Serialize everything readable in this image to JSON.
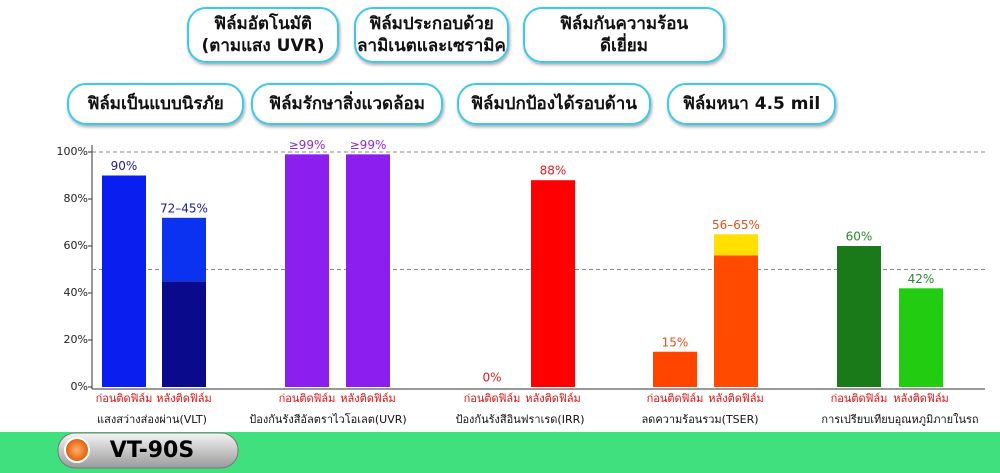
{
  "badges": [
    {
      "lines": [
        "ฟิล์มอัตโนมัติ",
        "(ตามแสง UVR)"
      ]
    },
    {
      "lines": [
        "ฟิล์มประกอบด้วย",
        "ลามิเนตและเซรามิค"
      ]
    },
    {
      "lines": [
        "ฟิล์มกันความร้อน",
        "ดีเยี่ยม"
      ]
    },
    {
      "lines": [
        "ฟิล์มเป็นแบบนิรภัย"
      ]
    },
    {
      "lines": [
        "ฟิล์มรักษาสิ่งแวดล้อม"
      ]
    },
    {
      "lines": [
        "ฟิล์มปกป้องได้รอบด้าน"
      ]
    },
    {
      "lines": [
        "ฟิล์มหนา 4.5 mil"
      ]
    }
  ],
  "product": "VT-90S",
  "chart_data": {
    "type": "bar",
    "ylim": [
      0,
      100
    ],
    "yticks": [
      {
        "value": 0,
        "label": "0%"
      },
      {
        "value": 20,
        "label": "20%"
      },
      {
        "value": 40,
        "label": "40%"
      },
      {
        "value": 60,
        "label": "60%"
      },
      {
        "value": 80,
        "label": "80%"
      },
      {
        "value": 100,
        "label": "100%"
      }
    ],
    "gridlines": [
      50,
      100
    ],
    "groups": [
      {
        "name": "แสงสว่างส่องผ่าน(VLT)",
        "bars": [
          {
            "label": "ก่อนติดฟิล์ม",
            "value": 90,
            "value_label": "90%",
            "color": "#0a1ef0",
            "label_color": "#1a1a9a"
          },
          {
            "label": "หลังติดฟิล์ม",
            "low": 45,
            "high": 72,
            "value_label": "72–45%",
            "color": "#0a0a8c",
            "color_high": "#0a32f0",
            "label_color": "#1a1a9a"
          }
        ]
      },
      {
        "name": "ป้องกันรังสีอัลตราไวโอเลต(UVR)",
        "bars": [
          {
            "label": "ก่อนติดฟิล์ม",
            "value": 99,
            "value_label": "≥99%",
            "color": "#8c1ef0",
            "label_color": "#8a2be2"
          },
          {
            "label": "หลังติดฟิล์ม",
            "value": 99,
            "value_label": "≥99%",
            "color": "#8c1ef0",
            "label_color": "#8a2be2"
          }
        ]
      },
      {
        "name": "ป้องกันรังสีอินฟราเรด(IRR)",
        "bars": [
          {
            "label": "ก่อนติดฟิล์ม",
            "value": 0,
            "value_label": "0%",
            "color": "#ff0000",
            "label_color": "#e02020"
          },
          {
            "label": "หลังติดฟิล์ม",
            "value": 88,
            "value_label": "88%",
            "color": "#ff0000",
            "label_color": "#e02020"
          }
        ]
      },
      {
        "name": "ลดความร้อนรวม(TSER)",
        "bars": [
          {
            "label": "ก่อนติดฟิล์ม",
            "value": 15,
            "value_label": "15%",
            "color": "#ff4500",
            "label_color": "#e8501a"
          },
          {
            "label": "หลังติดฟิล์ม",
            "low": 56,
            "high": 65,
            "value_label": "56–65%",
            "color": "#ff4a00",
            "color_high": "#ffe000",
            "label_color": "#e8501a"
          }
        ]
      },
      {
        "name": "การเปรียบเทียบอุณหภูมิภายในรถ",
        "bars": [
          {
            "label": "ก่อนติดฟิล์ม",
            "value": 60,
            "value_label": "60%",
            "color": "#1a7a1a",
            "label_color": "#2a8a2a"
          },
          {
            "label": "หลังติดฟิล์ม",
            "value": 42,
            "value_label": "42%",
            "color": "#22cc11",
            "label_color": "#2a8a2a"
          }
        ]
      }
    ]
  }
}
